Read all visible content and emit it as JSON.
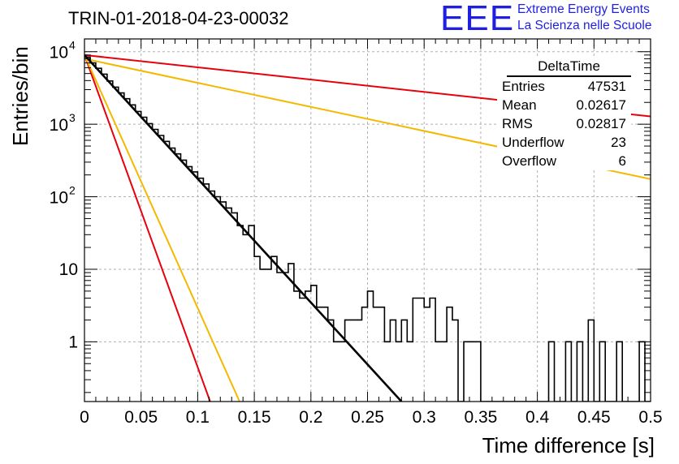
{
  "header": {
    "title": "TRIN-01-2018-04-23-00032",
    "logo_eee": "EEE",
    "logo_line1": "Extreme Energy Events",
    "logo_line2": "La Scienza nelle Scuole"
  },
  "stats_box": {
    "name": "DeltaTime",
    "rows": [
      {
        "label": "Entries",
        "value": "47531"
      },
      {
        "label": "Mean",
        "value": "0.02617"
      },
      {
        "label": "RMS",
        "value": "0.02817"
      },
      {
        "label": "Underflow",
        "value": "23"
      },
      {
        "label": "Overflow",
        "value": "6"
      }
    ]
  },
  "colors": {
    "histogram": "#000000",
    "red_curve": "#e8000b",
    "yellow_curve": "#f5b800",
    "grid": "#b0b0b0"
  },
  "chart_data": {
    "type": "line",
    "title": "TRIN-01-2018-04-23-00032",
    "xlabel": "Time difference [s]",
    "ylabel": "Entries/bin",
    "xlim": [
      0,
      0.5
    ],
    "ylim": [
      0.15,
      15000
    ],
    "yscale": "log",
    "grid": true,
    "x_ticks": [
      0,
      0.05,
      0.1,
      0.15,
      0.2,
      0.25,
      0.3,
      0.35,
      0.4,
      0.45,
      0.5
    ],
    "x_tick_labels": [
      "0",
      "0.05",
      "0.1",
      "0.15",
      "0.2",
      "0.25",
      "0.3",
      "0.35",
      "0.4",
      "0.45",
      "0.5"
    ],
    "y_ticks": [
      1,
      10,
      100,
      1000,
      10000
    ],
    "histogram": {
      "name": "DeltaTime",
      "bin_width": 0.005,
      "x_start": 0,
      "counts": [
        8400,
        7000,
        5900,
        4900,
        3950,
        3250,
        2700,
        2250,
        1850,
        1500,
        1250,
        1020,
        850,
        700,
        580,
        470,
        390,
        320,
        260,
        220,
        180,
        150,
        120,
        100,
        85,
        70,
        60,
        40,
        30,
        40,
        15,
        10,
        10,
        15,
        9,
        9,
        12,
        5,
        4,
        5,
        6,
        3,
        3,
        2,
        1,
        1,
        2,
        2,
        2,
        3,
        5,
        3,
        3,
        1,
        2,
        1,
        2,
        1,
        4,
        4,
        3,
        4,
        1,
        1,
        3,
        2,
        0,
        1,
        1,
        1,
        0,
        0,
        0,
        0,
        0,
        0,
        0,
        0,
        0,
        0,
        0,
        0,
        1,
        0,
        0,
        1,
        0,
        1,
        0,
        2,
        0,
        1,
        0,
        0,
        1,
        0,
        0,
        0,
        1,
        0
      ]
    },
    "series": [
      {
        "name": "fit",
        "color": "#000000",
        "x": [
          0,
          0.28
        ],
        "y": [
          9000,
          0.15
        ]
      },
      {
        "name": "red-steep",
        "color": "#e8000b",
        "x": [
          0,
          0.111
        ],
        "y": [
          9000,
          0.15
        ]
      },
      {
        "name": "yellow-steep",
        "color": "#f5b800",
        "x": [
          0,
          0.137
        ],
        "y": [
          9000,
          0.15
        ]
      },
      {
        "name": "red-shallow",
        "color": "#e8000b",
        "x": [
          0,
          0.5
        ],
        "y": [
          9000,
          1280
        ]
      },
      {
        "name": "yellow-shallow",
        "color": "#f5b800",
        "x": [
          0,
          0.5
        ],
        "y": [
          8000,
          175
        ]
      }
    ]
  }
}
